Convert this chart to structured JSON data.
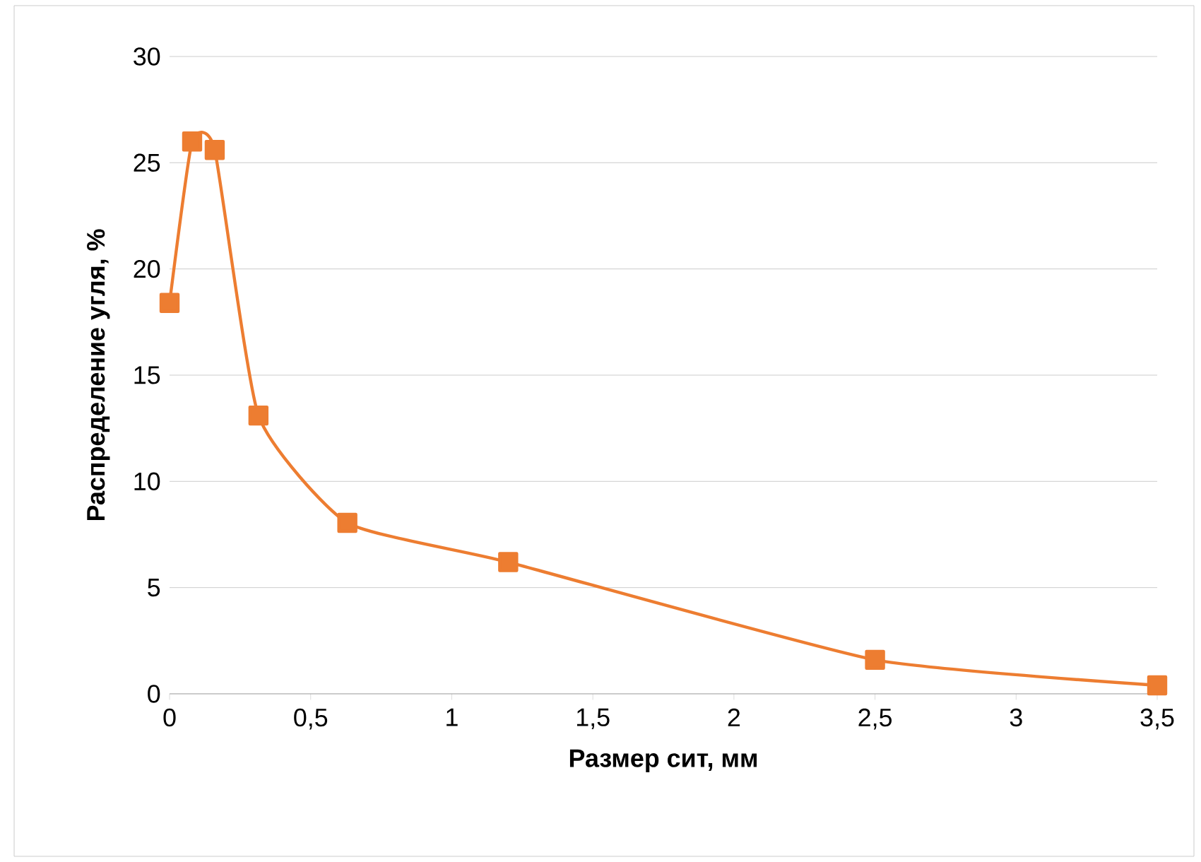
{
  "chart_data": {
    "type": "line",
    "xlabel": "Размер сит, мм",
    "ylabel": "Распределение угля, %",
    "x": [
      0,
      0.08,
      0.16,
      0.315,
      0.63,
      1.2,
      2.5,
      3.5
    ],
    "series": [
      {
        "color": "#ed7d31",
        "values": [
          18.4,
          26.0,
          25.6,
          13.1,
          8.05,
          6.2,
          1.6,
          0.4
        ]
      }
    ],
    "xlim": [
      0,
      3.5
    ],
    "xticks": [
      0,
      {
        "value": 0.5,
        "label": "0,5"
      },
      1,
      {
        "value": 1.5,
        "label": "1,5"
      },
      2,
      {
        "value": 2.5,
        "label": "2,5"
      },
      3,
      {
        "value": 3.5,
        "label": "3,5"
      }
    ],
    "ylim": [
      0,
      30
    ],
    "yticks": [
      0,
      5,
      10,
      15,
      20,
      25,
      30
    ],
    "grid": "y",
    "marker": "square",
    "line_style": "solid"
  }
}
